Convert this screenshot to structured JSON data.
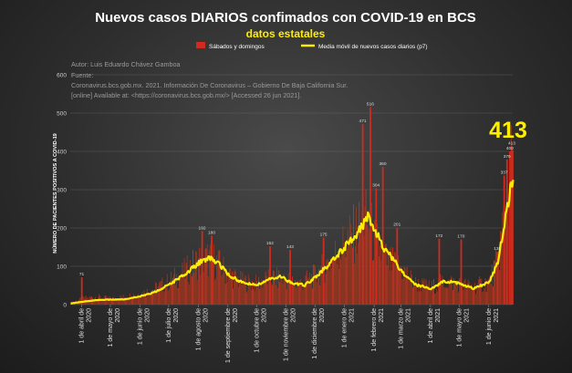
{
  "chart_data": {
    "type": "bar",
    "title": "Nuevos casos DIARIOS confimados con COVID-19 en BCS",
    "subtitle": "datos estatales",
    "ylabel": "NÚMERO DE PACIENTES POSITIVOS A COVID-19",
    "xlabel": "",
    "ylim": [
      0,
      600
    ],
    "yticks": [
      0,
      100,
      200,
      300,
      400,
      500,
      600
    ],
    "grid": true,
    "legend_position": "top-center",
    "series": [
      {
        "name": "Sábados y domingos",
        "type": "bar",
        "color": "#d22a1e"
      },
      {
        "name": "Media móvil de  nuevos casos diarios (p7)",
        "type": "line",
        "color": "#ffee00"
      }
    ],
    "source_text": [
      "Autor: Luis Eduardo Chávez Gamboa",
      "Fuente:",
      "Coronavirus.bcs.gob.mx. 2021. Información De Coronavirus – Gobierno De Baja California Sur.",
      "[online] Available at: <https://coronavirus.bcs.gob.mx/> [Accessed 26 jun 2021]."
    ],
    "highlight_value": "413",
    "x_tick_labels": [
      "1 de abril de 2020",
      "1 de mayo de 2020",
      "1 de junio de 2020",
      "1 de julio de 2020",
      "1 de agosto de 2020",
      "1 de septiembre de 2020",
      "1 de octubre de 2020",
      "1 de noviembre de 2020",
      "1 de diciembre de 2020",
      "1 de enero de 2021",
      "1 de febrero de 2021",
      "1 de marzo de 2021",
      "1 de abril de 2021",
      "1 de mayo de 2021",
      "1 de junio de 2021"
    ],
    "x_start": "2020-03-20",
    "x_end": "2021-06-26",
    "daily_anchors": [
      [
        "2020-03-20",
        5
      ],
      [
        "2020-04-01",
        15
      ],
      [
        "2020-04-15",
        20
      ],
      [
        "2020-05-01",
        15
      ],
      [
        "2020-05-15",
        20
      ],
      [
        "2020-06-01",
        28
      ],
      [
        "2020-06-15",
        40
      ],
      [
        "2020-07-01",
        60
      ],
      [
        "2020-07-15",
        80
      ],
      [
        "2020-08-01",
        115
      ],
      [
        "2020-08-15",
        120
      ],
      [
        "2020-09-01",
        80
      ],
      [
        "2020-09-15",
        60
      ],
      [
        "2020-10-01",
        55
      ],
      [
        "2020-10-15",
        70
      ],
      [
        "2020-11-01",
        65
      ],
      [
        "2020-11-15",
        55
      ],
      [
        "2020-12-01",
        75
      ],
      [
        "2020-12-15",
        110
      ],
      [
        "2021-01-01",
        160
      ],
      [
        "2021-01-15",
        195
      ],
      [
        "2021-01-25",
        220
      ],
      [
        "2021-02-01",
        165
      ],
      [
        "2021-02-15",
        110
      ],
      [
        "2021-03-01",
        95
      ],
      [
        "2021-03-15",
        55
      ],
      [
        "2021-04-01",
        45
      ],
      [
        "2021-04-15",
        60
      ],
      [
        "2021-05-01",
        55
      ],
      [
        "2021-05-15",
        45
      ],
      [
        "2021-06-01",
        60
      ],
      [
        "2021-06-10",
        110
      ],
      [
        "2021-06-18",
        250
      ],
      [
        "2021-06-26",
        360
      ]
    ],
    "moving_average_anchors": [
      [
        "2020-03-20",
        3
      ],
      [
        "2020-04-15",
        12
      ],
      [
        "2020-05-15",
        14
      ],
      [
        "2020-06-01",
        22
      ],
      [
        "2020-06-15",
        32
      ],
      [
        "2020-07-01",
        52
      ],
      [
        "2020-07-15",
        75
      ],
      [
        "2020-08-01",
        108
      ],
      [
        "2020-08-10",
        122
      ],
      [
        "2020-08-20",
        112
      ],
      [
        "2020-09-01",
        78
      ],
      [
        "2020-09-15",
        58
      ],
      [
        "2020-10-01",
        52
      ],
      [
        "2020-10-15",
        68
      ],
      [
        "2020-10-25",
        74
      ],
      [
        "2020-11-05",
        58
      ],
      [
        "2020-11-20",
        50
      ],
      [
        "2020-12-01",
        72
      ],
      [
        "2020-12-15",
        105
      ],
      [
        "2021-01-01",
        150
      ],
      [
        "2021-01-15",
        190
      ],
      [
        "2021-01-25",
        228
      ],
      [
        "2021-02-01",
        198
      ],
      [
        "2021-02-10",
        150
      ],
      [
        "2021-02-20",
        120
      ],
      [
        "2021-03-01",
        88
      ],
      [
        "2021-03-15",
        52
      ],
      [
        "2021-04-01",
        42
      ],
      [
        "2021-04-15",
        62
      ],
      [
        "2021-05-01",
        55
      ],
      [
        "2021-05-15",
        42
      ],
      [
        "2021-06-01",
        58
      ],
      [
        "2021-06-10",
        110
      ],
      [
        "2021-06-18",
        230
      ],
      [
        "2021-06-26",
        340
      ]
    ],
    "peak_labels": [
      [
        "2020-04-01",
        71
      ],
      [
        "2020-08-05",
        192
      ],
      [
        "2020-08-15",
        180
      ],
      [
        "2020-10-15",
        152
      ],
      [
        "2020-11-05",
        143
      ],
      [
        "2020-12-10",
        175
      ],
      [
        "2021-01-20",
        471
      ],
      [
        "2021-01-28",
        516
      ],
      [
        "2021-02-03",
        304
      ],
      [
        "2021-02-10",
        360
      ],
      [
        "2021-02-25",
        201
      ],
      [
        "2021-04-10",
        172
      ],
      [
        "2021-05-03",
        170
      ],
      [
        "2021-06-10",
        138
      ],
      [
        "2021-06-17",
        337
      ],
      [
        "2021-06-20",
        379
      ],
      [
        "2021-06-23",
        400
      ],
      [
        "2021-06-25",
        413
      ]
    ]
  }
}
